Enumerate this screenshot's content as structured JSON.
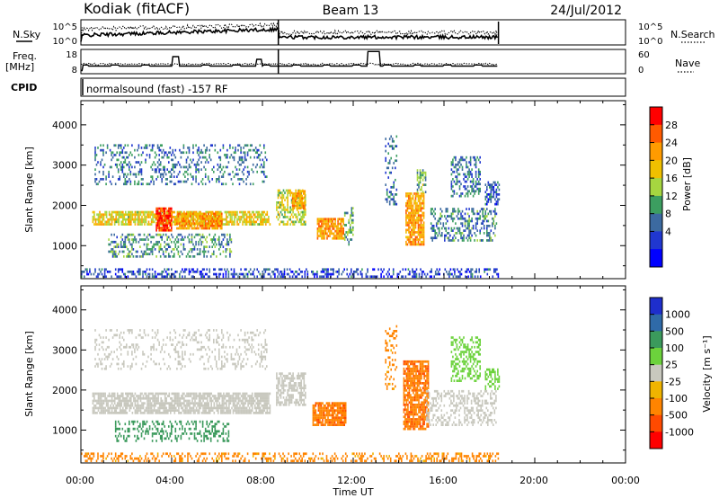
{
  "header": {
    "station": "Kodiak (fitACF)",
    "beam": "Beam 13",
    "date": "24/Jul/2012"
  },
  "status_panels": {
    "nsky_label": "N.Sky",
    "nsearch_label": "N.Search",
    "noise_ticks": [
      "10^5",
      "10^0"
    ],
    "freq_label_line1": "Freq.",
    "freq_label_line2": "[MHz]",
    "freq_ticks": [
      "18",
      "8"
    ],
    "nave_label": "Nave",
    "nave_ticks": [
      "60",
      "0"
    ],
    "cpid_label": "CPID",
    "cpid_text": "normalsound (fast) -157 RF"
  },
  "colorbars": {
    "power": {
      "title": "Power [dB]",
      "ticks": [
        "28",
        "24",
        "20",
        "16",
        "12",
        "8",
        "4"
      ],
      "colors": [
        "#ff0000",
        "#ff5a00",
        "#ff9b00",
        "#f0c000",
        "#a6d640",
        "#3c9e60",
        "#3c6aa0",
        "#2037d0",
        "#0000ff"
      ]
    },
    "velocity": {
      "title": "Velocity [m s⁻¹]",
      "ticks": [
        "1000",
        "500",
        "100",
        "25",
        "-25",
        "-100",
        "-500",
        "-1000"
      ],
      "colors": [
        "#1e2ecc",
        "#2f6aa8",
        "#3b9a5c",
        "#6cd23c",
        "#c8c8be",
        "#f0b400",
        "#ff8400",
        "#ff4a00",
        "#ff0000"
      ]
    }
  },
  "axes": {
    "ylabel": "Slant Range [km]",
    "xlabel": "Time UT",
    "yticks": [
      "4000",
      "3000",
      "2000",
      "1000"
    ],
    "xticks": [
      "00:00",
      "04:00",
      "08:00",
      "12:00",
      "16:00",
      "20:00",
      "00:00"
    ]
  },
  "chart_data": [
    {
      "type": "heatmap",
      "title": "Power",
      "xlabel": "Time UT",
      "ylabel": "Slant Range [km]",
      "xlim_hours": [
        0,
        24
      ],
      "ylim_km": [
        180,
        4600
      ],
      "colorbar_label": "Power [dB]",
      "zlim": [
        0,
        30
      ],
      "data_end_hour": 18.4,
      "regions": [
        {
          "t0": 0.5,
          "t1": 8.3,
          "r0": 1500,
          "r1": 1850,
          "level": 18,
          "density": 0.75
        },
        {
          "t0": 3.3,
          "t1": 4.0,
          "r0": 1350,
          "r1": 1900,
          "level": 28,
          "density": 0.85
        },
        {
          "t0": 4.2,
          "t1": 6.2,
          "r0": 1400,
          "r1": 1800,
          "level": 22,
          "density": 0.8
        },
        {
          "t0": 0.6,
          "t1": 8.2,
          "r0": 2500,
          "r1": 3500,
          "level": 8,
          "density": 0.25
        },
        {
          "t0": 1.2,
          "t1": 6.6,
          "r0": 700,
          "r1": 1300,
          "level": 10,
          "density": 0.35
        },
        {
          "t0": 8.6,
          "t1": 9.9,
          "r0": 1500,
          "r1": 2400,
          "level": 16,
          "density": 0.5
        },
        {
          "t0": 9.3,
          "t1": 9.9,
          "r0": 1900,
          "r1": 2350,
          "level": 22,
          "density": 0.8
        },
        {
          "t0": 10.4,
          "t1": 11.6,
          "r0": 1150,
          "r1": 1650,
          "level": 22,
          "density": 0.85
        },
        {
          "t0": 11.6,
          "t1": 12.0,
          "r0": 1000,
          "r1": 2000,
          "level": 12,
          "density": 0.35
        },
        {
          "t0": 13.4,
          "t1": 13.9,
          "r0": 2000,
          "r1": 3700,
          "level": 8,
          "density": 0.25
        },
        {
          "t0": 14.3,
          "t1": 15.1,
          "r0": 1000,
          "r1": 2300,
          "level": 22,
          "density": 0.8
        },
        {
          "t0": 14.8,
          "t1": 15.2,
          "r0": 2300,
          "r1": 2900,
          "level": 12,
          "density": 0.6
        },
        {
          "t0": 15.4,
          "t1": 18.3,
          "r0": 1100,
          "r1": 1900,
          "level": 9,
          "density": 0.4
        },
        {
          "t0": 16.3,
          "t1": 17.6,
          "r0": 2200,
          "r1": 3200,
          "level": 8,
          "density": 0.45
        },
        {
          "t0": 17.8,
          "t1": 18.4,
          "r0": 2000,
          "r1": 2600,
          "level": 6,
          "density": 0.5
        },
        {
          "t0": 0.0,
          "t1": 18.4,
          "r0": 200,
          "r1": 420,
          "level": 5,
          "density": 0.4
        }
      ]
    },
    {
      "type": "heatmap",
      "title": "Velocity",
      "xlabel": "Time UT",
      "ylabel": "Slant Range [km]",
      "xlim_hours": [
        0,
        24
      ],
      "ylim_km": [
        180,
        4600
      ],
      "colorbar_label": "Velocity [m s⁻¹]",
      "zlim": [
        -1000,
        1000
      ],
      "data_end_hour": 18.4,
      "regions": [
        {
          "t0": 0.5,
          "t1": 8.3,
          "r0": 1400,
          "r1": 1900,
          "level": 0,
          "density": 0.75
        },
        {
          "t0": 0.6,
          "t1": 8.2,
          "r0": 2500,
          "r1": 3500,
          "level": 0,
          "density": 0.2
        },
        {
          "t0": 1.5,
          "t1": 6.5,
          "r0": 700,
          "r1": 1200,
          "level": 300,
          "density": 0.3
        },
        {
          "t0": 8.6,
          "t1": 9.9,
          "r0": 1600,
          "r1": 2400,
          "level": 0,
          "density": 0.6
        },
        {
          "t0": 10.2,
          "t1": 11.7,
          "r0": 1100,
          "r1": 1700,
          "level": -400,
          "density": 0.85
        },
        {
          "t0": 13.4,
          "t1": 13.9,
          "r0": 2000,
          "r1": 3600,
          "level": -150,
          "density": 0.25
        },
        {
          "t0": 14.2,
          "t1": 15.3,
          "r0": 1000,
          "r1": 2700,
          "level": -400,
          "density": 0.8
        },
        {
          "t0": 15.2,
          "t1": 18.3,
          "r0": 1100,
          "r1": 2000,
          "level": 0,
          "density": 0.4
        },
        {
          "t0": 16.3,
          "t1": 17.6,
          "r0": 2200,
          "r1": 3300,
          "level": 60,
          "density": 0.4
        },
        {
          "t0": 17.8,
          "t1": 18.4,
          "r0": 2000,
          "r1": 2500,
          "level": 60,
          "density": 0.45
        },
        {
          "t0": 0.0,
          "t1": 18.4,
          "r0": 200,
          "r1": 420,
          "level": -150,
          "density": 0.35
        }
      ]
    }
  ]
}
